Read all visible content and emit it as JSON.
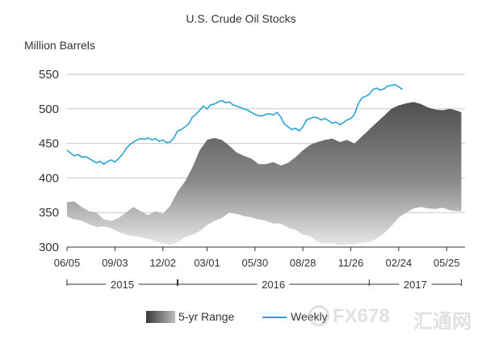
{
  "chart_data": {
    "type": "area",
    "title": "U.S. Crude Oil Stocks",
    "ylabel": "Million Barrels",
    "xlabel": "",
    "ylim": [
      300,
      560
    ],
    "y_ticks": [
      300,
      350,
      400,
      450,
      500,
      550
    ],
    "x_ticks": [
      "06/05",
      "09/03",
      "12/02",
      "03/01",
      "05/30",
      "08/28",
      "11/26",
      "02/24",
      "05/25"
    ],
    "year_labels": [
      "2015",
      "2016",
      "2017"
    ],
    "grid": true,
    "legend_position": "bottom",
    "x_domain": [
      0,
      108
    ],
    "tick_positions": [
      0,
      13,
      26,
      38,
      51,
      64,
      77,
      90,
      103
    ],
    "year_dividers": [
      0,
      30,
      82,
      107
    ],
    "series": [
      {
        "name": "Weekly",
        "color": "#29a3d6",
        "x": [
          0,
          1,
          2,
          3,
          4,
          5,
          6,
          7,
          8,
          9,
          10,
          11,
          12,
          13,
          14,
          15,
          16,
          17,
          18,
          19,
          20,
          21,
          22,
          23,
          24,
          25,
          26,
          27,
          28,
          29,
          30,
          31,
          32,
          33,
          34,
          35,
          36,
          37,
          38,
          39,
          40,
          41,
          42,
          43,
          44,
          45,
          46,
          47,
          48,
          49,
          50,
          51,
          52,
          53,
          54,
          55,
          56,
          57,
          58,
          59,
          60,
          61,
          62,
          63,
          64,
          65,
          66,
          67,
          68,
          69,
          70,
          71,
          72,
          73,
          74,
          75,
          76,
          77,
          78,
          79,
          80,
          81,
          82,
          83,
          84,
          85,
          86,
          87,
          88,
          89,
          90,
          91,
          92,
          93,
          94,
          95,
          96,
          97,
          98,
          99,
          100
        ],
        "values": [
          440,
          436,
          432,
          434,
          430,
          431,
          428,
          425,
          422,
          424,
          420,
          424,
          426,
          423,
          428,
          434,
          442,
          448,
          452,
          455,
          457,
          456,
          458,
          455,
          457,
          453,
          455,
          451,
          452,
          458,
          468,
          470,
          474,
          478,
          488,
          492,
          498,
          504,
          500,
          506,
          507,
          510,
          512,
          509,
          510,
          506,
          504,
          502,
          500,
          498,
          495,
          492,
          490,
          490,
          492,
          493,
          491,
          495,
          488,
          478,
          474,
          470,
          472,
          468,
          474,
          484,
          486,
          488,
          487,
          484,
          486,
          483,
          479,
          481,
          477,
          480,
          484,
          486,
          492,
          507,
          516,
          518,
          521,
          528,
          530,
          527,
          529,
          533,
          534,
          535,
          532,
          528,
          null,
          null,
          null,
          null,
          null,
          null,
          null,
          null,
          null
        ]
      },
      {
        "name": "5-yr Range",
        "color": "#7a7a7a",
        "x": [
          0,
          2,
          4,
          6,
          8,
          10,
          12,
          14,
          16,
          18,
          20,
          22,
          24,
          26,
          28,
          30,
          32,
          34,
          36,
          38,
          40,
          42,
          44,
          46,
          48,
          50,
          52,
          54,
          56,
          58,
          60,
          62,
          64,
          66,
          68,
          70,
          72,
          74,
          76,
          78,
          80,
          82,
          84,
          86,
          88,
          90,
          92,
          94,
          96,
          98,
          100,
          102,
          104,
          106,
          107
        ],
        "upper": [
          365,
          366,
          358,
          352,
          350,
          340,
          338,
          342,
          350,
          358,
          352,
          346,
          352,
          348,
          360,
          380,
          395,
          415,
          440,
          455,
          458,
          455,
          447,
          437,
          432,
          428,
          420,
          420,
          423,
          418,
          422,
          430,
          440,
          448,
          452,
          455,
          457,
          452,
          455,
          450,
          460,
          470,
          480,
          490,
          500,
          505,
          508,
          510,
          507,
          502,
          499,
          498,
          500,
          497,
          495
        ],
        "lower": [
          344,
          340,
          338,
          333,
          329,
          330,
          327,
          322,
          318,
          316,
          314,
          312,
          308,
          305,
          303,
          307,
          314,
          318,
          323,
          332,
          338,
          342,
          350,
          348,
          345,
          343,
          340,
          338,
          334,
          334,
          328,
          325,
          318,
          316,
          307,
          305,
          306,
          302,
          304,
          304,
          306,
          307,
          312,
          320,
          330,
          343,
          350,
          356,
          358,
          356,
          355,
          357,
          353,
          352,
          352
        ]
      }
    ]
  },
  "watermark": {
    "brand": "FX678",
    "cn": "汇通网"
  }
}
